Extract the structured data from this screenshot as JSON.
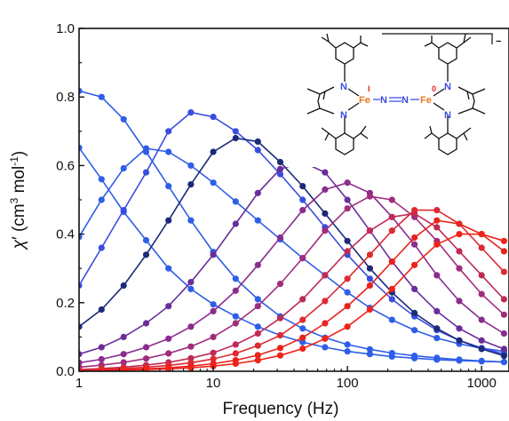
{
  "chart_data": {
    "type": "line",
    "x_scale": "log",
    "xlim": [
      1,
      1600
    ],
    "ylim": [
      0,
      1.0
    ],
    "xlabel": "Frequency (Hz)",
    "ylabel_parts": {
      "chi": "χ",
      "prime": "′",
      "open": " (cm",
      "three": "3",
      "mol": " mol",
      "minus_one": "-1",
      "close": ")"
    },
    "x_ticks": [
      {
        "value": 1,
        "label": "1"
      },
      {
        "value": 10,
        "label": "10"
      },
      {
        "value": 100,
        "label": "100"
      },
      {
        "value": 1000,
        "label": "1000"
      }
    ],
    "y_ticks": [
      {
        "value": 0.0,
        "label": "0.0"
      },
      {
        "value": 0.2,
        "label": "0.2"
      },
      {
        "value": 0.4,
        "label": "0.4"
      },
      {
        "value": 0.6,
        "label": "0.6"
      },
      {
        "value": 0.8,
        "label": "0.8"
      },
      {
        "value": 1.0,
        "label": "1.0"
      }
    ],
    "grid": false,
    "legend": "none",
    "x": [
      1.0,
      1.47,
      2.15,
      3.16,
      4.64,
      6.81,
      10.0,
      14.7,
      21.5,
      31.6,
      46.4,
      68.1,
      100,
      147,
      215,
      316,
      464,
      681,
      1000,
      1470
    ],
    "series": [
      {
        "color": "#2e5ee8",
        "values": [
          0.392,
          0.5,
          0.592,
          0.65,
          0.64,
          0.6,
          0.55,
          0.495,
          0.44,
          0.385,
          0.33,
          0.28,
          0.23,
          0.185,
          0.15,
          0.12,
          0.097,
          0.08,
          0.067,
          0.058
        ]
      },
      {
        "color": "#2e5ee8",
        "values": [
          0.652,
          0.56,
          0.465,
          0.382,
          0.3,
          0.24,
          0.195,
          0.16,
          0.13,
          0.105,
          0.085,
          0.07,
          0.058,
          0.05,
          0.043,
          0.038,
          0.034,
          0.031,
          0.029,
          0.027
        ]
      },
      {
        "color": "#2e5ee8",
        "values": [
          0.818,
          0.8,
          0.735,
          0.64,
          0.54,
          0.44,
          0.348,
          0.27,
          0.21,
          0.16,
          0.125,
          0.098,
          0.078,
          0.064,
          0.053,
          0.045,
          0.039,
          0.034,
          0.03,
          0.027
        ]
      },
      {
        "color": "#3a4de0",
        "values": [
          0.25,
          0.36,
          0.47,
          0.58,
          0.7,
          0.755,
          0.742,
          0.7,
          0.645,
          0.575,
          0.5,
          0.42,
          0.34,
          0.27,
          0.21,
          0.16,
          0.12,
          0.09,
          0.068,
          0.05
        ]
      },
      {
        "color": "#1c2a78",
        "values": [
          0.13,
          0.18,
          0.25,
          0.34,
          0.44,
          0.545,
          0.64,
          0.68,
          0.67,
          0.61,
          0.54,
          0.46,
          0.38,
          0.3,
          0.23,
          0.17,
          0.125,
          0.09,
          0.065,
          0.045
        ]
      },
      {
        "color": "#6a2d9a",
        "values": [
          0.05,
          0.07,
          0.1,
          0.14,
          0.19,
          0.26,
          0.34,
          0.43,
          0.52,
          0.59,
          0.61,
          0.58,
          0.5,
          0.41,
          0.32,
          0.24,
          0.175,
          0.125,
          0.09,
          0.065
        ]
      },
      {
        "color": "#8a2c8e",
        "values": [
          0.025,
          0.035,
          0.05,
          0.07,
          0.095,
          0.13,
          0.175,
          0.235,
          0.31,
          0.39,
          0.47,
          0.53,
          0.55,
          0.52,
          0.45,
          0.37,
          0.28,
          0.205,
          0.15,
          0.11
        ]
      },
      {
        "color": "#a02c7c",
        "values": [
          0.012,
          0.018,
          0.026,
          0.037,
          0.052,
          0.072,
          0.1,
          0.14,
          0.19,
          0.255,
          0.33,
          0.41,
          0.475,
          0.51,
          0.5,
          0.45,
          0.38,
          0.3,
          0.225,
          0.165
        ]
      },
      {
        "color": "#c02b55",
        "values": [
          0.005,
          0.008,
          0.012,
          0.018,
          0.026,
          0.038,
          0.054,
          0.078,
          0.11,
          0.155,
          0.21,
          0.28,
          0.35,
          0.41,
          0.45,
          0.46,
          0.42,
          0.35,
          0.28,
          0.21
        ]
      },
      {
        "color": "#dd2a33",
        "values": [
          0.003,
          0.005,
          0.008,
          0.012,
          0.017,
          0.025,
          0.036,
          0.052,
          0.075,
          0.105,
          0.15,
          0.205,
          0.27,
          0.34,
          0.41,
          0.47,
          0.47,
          0.43,
          0.36,
          0.29
        ]
      },
      {
        "color": "#e8221c",
        "values": [
          0.002,
          0.003,
          0.005,
          0.007,
          0.01,
          0.015,
          0.022,
          0.032,
          0.047,
          0.068,
          0.098,
          0.14,
          0.19,
          0.25,
          0.32,
          0.39,
          0.44,
          0.43,
          0.4,
          0.35
        ]
      },
      {
        "color": "#f0231a",
        "values": [
          0.001,
          0.002,
          0.003,
          0.005,
          0.007,
          0.01,
          0.015,
          0.022,
          0.032,
          0.046,
          0.066,
          0.095,
          0.13,
          0.18,
          0.24,
          0.31,
          0.37,
          0.4,
          0.4,
          0.38
        ]
      }
    ]
  },
  "structure_labels": {
    "n1": "N",
    "n2": "N",
    "n3": "N",
    "n4": "N",
    "fe_left": "Fe",
    "fe_right": "Fe",
    "ox_left": "I",
    "ox_right": "0",
    "bridge_n1": "N",
    "bridge_n2": "N",
    "charge": "−"
  },
  "colors": {
    "fe": "#e87722",
    "bridge": "#3a4de0",
    "axis": "#111111"
  }
}
